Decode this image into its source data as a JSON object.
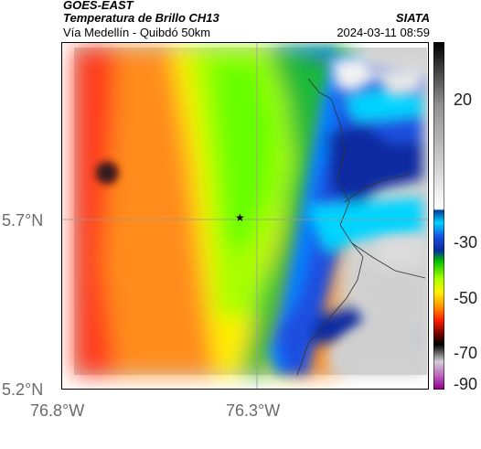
{
  "header": {
    "satellite": "GOES-EAST",
    "product": "Temperatura de Brillo CH13",
    "region": "Vía Medellín - Quibdó 50km",
    "organization": "SIATA",
    "timestamp": "2024-03-11 08:59"
  },
  "map": {
    "lat_labels": [
      "5.7°N",
      "5.2°N"
    ],
    "lon_labels": [
      "76.8°W",
      "76.3°W"
    ],
    "marker_icon": "star-icon"
  },
  "colorbar": {
    "tick_labels": [
      "20",
      "-30",
      "-50",
      "-70",
      "-90"
    ]
  }
}
